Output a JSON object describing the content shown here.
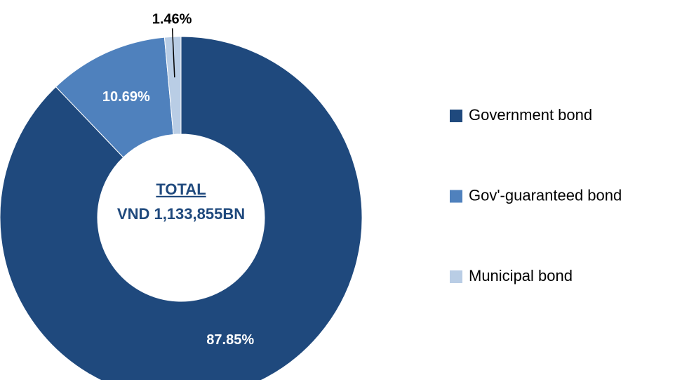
{
  "chart_data": {
    "type": "pie",
    "donut": true,
    "annotations": [
      "TOTAL",
      "VND 1,133,855BN"
    ],
    "series": [
      {
        "name": "Government bond",
        "color": "#1f497d",
        "values": [
          87.85
        ],
        "value_labels": [
          "87.85%"
        ]
      },
      {
        "name": "Gov'-guaranteed bond",
        "color": "#4f81bd",
        "values": [
          10.69
        ],
        "value_labels": [
          "10.69%"
        ]
      },
      {
        "name": "Municipal bond",
        "color": "#b9cde5",
        "values": [
          1.46
        ],
        "value_labels": [
          "1.46%"
        ]
      }
    ],
    "legend": "right"
  }
}
